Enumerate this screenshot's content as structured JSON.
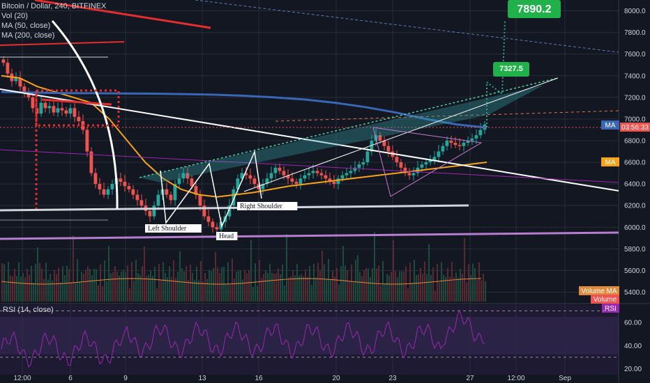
{
  "chart_data": [
    {
      "type": "candlestick",
      "title": "Bitcoin / Dollar, 240, BITFINEX",
      "indicators": [
        "Vol (20)",
        "MA (50, close)",
        "MA (200, close)"
      ],
      "price_axis_ticks": [
        8000,
        7800,
        7600,
        7400,
        7200,
        7000,
        6800,
        6600,
        6400,
        6200,
        6000,
        5800,
        5600,
        5400
      ],
      "ylim": [
        5300,
        8100
      ],
      "time_axis_ticks": [
        "12:00",
        "6",
        "9",
        "13",
        "16",
        "20",
        "23",
        "27",
        "12:00",
        "Sep"
      ],
      "annotations": {
        "target_high": "7890.2",
        "target_mid": "7327.5",
        "left_shoulder": "Left Shoulder",
        "head": "Head",
        "right_shoulder": "Right Shoulder"
      },
      "badges": {
        "ma_left": "MA",
        "countdown": "03:56:33",
        "ma_orange": "MA",
        "volume_ma": "Volume MA",
        "volume": "Volume",
        "rsi": "RSI"
      },
      "close_prices": [
        7520,
        7420,
        7350,
        7380,
        7300,
        7250,
        7200,
        7100,
        7050,
        7150,
        7100,
        7120,
        7060,
        7100,
        7080,
        7050,
        7100,
        7020,
        6980,
        6900,
        6700,
        6500,
        6400,
        6350,
        6300,
        6350,
        6400,
        6450,
        6420,
        6380,
        6350,
        6300,
        6250,
        6200,
        6150,
        6100,
        6200,
        6300,
        6350,
        6300,
        6250,
        6400,
        6450,
        6500,
        6450,
        6380,
        6300,
        6200,
        6100,
        6050,
        6000,
        5980,
        6050,
        6100,
        6200,
        6350,
        6450,
        6500,
        6480,
        6450,
        6400,
        6350,
        6400,
        6450,
        6500,
        6550,
        6520,
        6480,
        6450,
        6420,
        6400,
        6450,
        6480,
        6500,
        6520,
        6500,
        6480,
        6450,
        6420,
        6400,
        6450,
        6480,
        6500,
        6520,
        6550,
        6580,
        6600,
        6700,
        6800,
        6850,
        6800,
        6750,
        6700,
        6650,
        6600,
        6550,
        6500,
        6480,
        6500,
        6550,
        6580,
        6600,
        6620,
        6650,
        6700,
        6750,
        6800,
        6780,
        6760,
        6750,
        6780,
        6800,
        6820,
        6850,
        6900,
        6950
      ],
      "ma50": [
        7400,
        7380,
        7300,
        7250,
        7200,
        7150,
        7000,
        6800,
        6600,
        6450,
        6350,
        6300,
        6280,
        6300,
        6320,
        6350,
        6380,
        6400,
        6420,
        6440,
        6460,
        6480,
        6500,
        6520,
        6540,
        6560,
        6580,
        6600
      ],
      "ma200": [
        7250,
        7245,
        7240,
        7238,
        7236,
        7234,
        7230,
        7225,
        7215,
        7200,
        7180,
        7150,
        7110,
        7060,
        7000,
        6950,
        6920
      ],
      "rsi_ticks": [
        60,
        40,
        20
      ],
      "rsi_ylim": [
        15,
        75
      ]
    }
  ]
}
